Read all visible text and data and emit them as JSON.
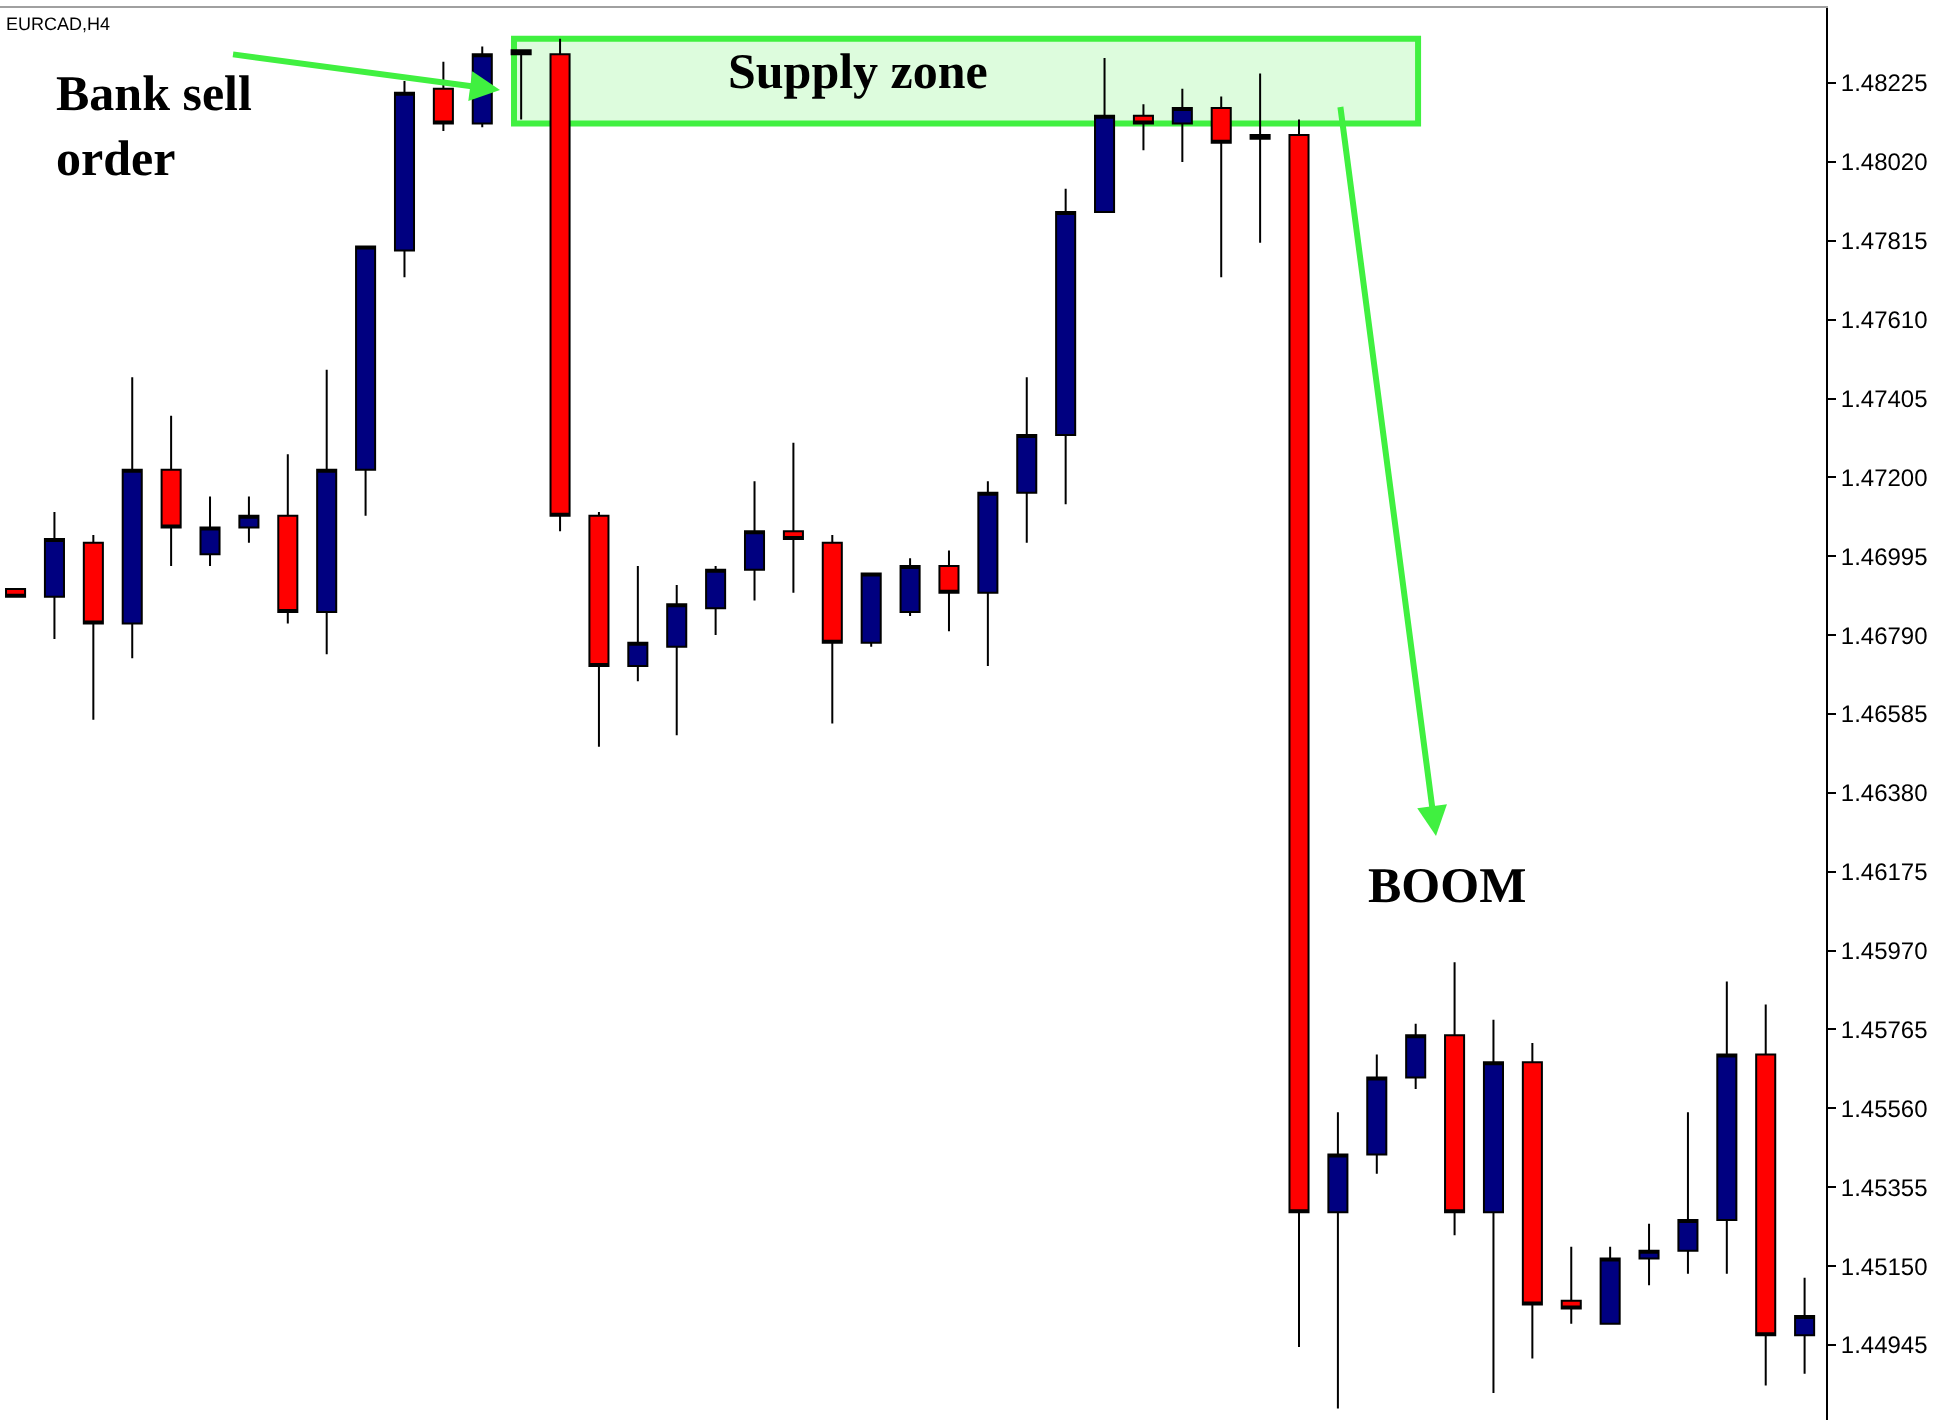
{
  "chart_data": {
    "type": "candlestick",
    "title": "EURCAD,H4",
    "categories": [
      null,
      null,
      null,
      null,
      null,
      null,
      null,
      null,
      null,
      null,
      null,
      null,
      null,
      null,
      null,
      null,
      null,
      null,
      null,
      null,
      null,
      null,
      null,
      null,
      null,
      null,
      null,
      null,
      null,
      null,
      null,
      null,
      null,
      null,
      null,
      null,
      null,
      null,
      null,
      null,
      null,
      null,
      null,
      null,
      null,
      null,
      null
    ],
    "ohlc": [
      [
        1.4691,
        1.4691,
        1.4689,
        1.4689
      ],
      [
        1.4689,
        1.4711,
        1.4678,
        1.4704
      ],
      [
        1.4703,
        1.4705,
        1.4657,
        1.4682
      ],
      [
        1.4682,
        1.4746,
        1.4673,
        1.4722
      ],
      [
        1.4722,
        1.4736,
        1.4697,
        1.4707
      ],
      [
        1.47,
        1.4715,
        1.4697,
        1.4707
      ],
      [
        1.4707,
        1.4715,
        1.4703,
        1.471
      ],
      [
        1.471,
        1.4726,
        1.4682,
        1.4685
      ],
      [
        1.4685,
        1.4748,
        1.4674,
        1.4722
      ],
      [
        1.4722,
        1.478,
        1.471,
        1.478
      ],
      [
        1.4779,
        1.4823,
        1.4772,
        1.482
      ],
      [
        1.4821,
        1.4828,
        1.481,
        1.4812
      ],
      [
        1.4812,
        1.4832,
        1.4811,
        1.483
      ],
      [
        1.483,
        1.4831,
        1.4813,
        1.4831
      ],
      [
        1.483,
        1.4834,
        1.4706,
        1.471
      ],
      [
        1.471,
        1.4711,
        1.465,
        1.4671
      ],
      [
        1.4671,
        1.4697,
        1.4667,
        1.4677
      ],
      [
        1.4676,
        1.4692,
        1.4653,
        1.4687
      ],
      [
        1.4686,
        1.4697,
        1.4679,
        1.4696
      ],
      [
        1.4696,
        1.4719,
        1.4688,
        1.4706
      ],
      [
        1.4706,
        1.4729,
        1.469,
        1.4704
      ],
      [
        1.4703,
        1.4705,
        1.4656,
        1.4677
      ],
      [
        1.4677,
        1.4695,
        1.4676,
        1.4695
      ],
      [
        1.4685,
        1.4699,
        1.4684,
        1.4697
      ],
      [
        1.4697,
        1.4701,
        1.468,
        1.469
      ],
      [
        1.469,
        1.4719,
        1.4671,
        1.4716
      ],
      [
        1.4716,
        1.4746,
        1.4703,
        1.4731
      ],
      [
        1.4731,
        1.4795,
        1.4713,
        1.4789
      ],
      [
        1.4789,
        1.4829,
        1.4789,
        1.4814
      ],
      [
        1.4814,
        1.4817,
        1.4805,
        1.4812
      ],
      [
        1.4812,
        1.4821,
        1.4802,
        1.4816
      ],
      [
        1.4816,
        1.4819,
        1.4772,
        1.4807
      ],
      [
        1.4808,
        1.4825,
        1.4781,
        1.4809
      ],
      [
        1.4809,
        1.4813,
        1.4494,
        1.4529
      ],
      [
        1.4529,
        1.4555,
        1.4478,
        1.4544
      ],
      [
        1.4544,
        1.457,
        1.4539,
        1.4564
      ],
      [
        1.4564,
        1.4578,
        1.4561,
        1.4575
      ],
      [
        1.4575,
        1.4594,
        1.4523,
        1.4529
      ],
      [
        1.4529,
        1.4579,
        1.4482,
        1.4568
      ],
      [
        1.4568,
        1.4573,
        1.4491,
        1.4505
      ],
      [
        1.4506,
        1.452,
        1.45,
        1.4504
      ],
      [
        1.45,
        1.452,
        1.45,
        1.4517
      ],
      [
        1.4517,
        1.4526,
        1.451,
        1.4519
      ],
      [
        1.4519,
        1.4555,
        1.4513,
        1.4527
      ],
      [
        1.4527,
        1.4589,
        1.4513,
        1.457
      ],
      [
        1.457,
        1.4583,
        1.4484,
        1.4497
      ],
      [
        1.4497,
        1.4512,
        1.4487,
        1.4502
      ]
    ],
    "colors": [
      "#ff0000",
      "#000080",
      "#ff0000",
      "#000080",
      "#ff0000",
      "#000080",
      "#000080",
      "#ff0000",
      "#000080",
      "#000080",
      "#000080",
      "#ff0000",
      "#000080",
      "#000000",
      "#ff0000",
      "#ff0000",
      "#000080",
      "#000080",
      "#000080",
      "#000080",
      "#ff0000",
      "#ff0000",
      "#000080",
      "#000080",
      "#ff0000",
      "#000080",
      "#000080",
      "#000080",
      "#000080",
      "#ff0000",
      "#000080",
      "#ff0000",
      "#000000",
      "#ff0000",
      "#000080",
      "#000080",
      "#000080",
      "#ff0000",
      "#000080",
      "#ff0000",
      "#ff0000",
      "#000080",
      "#000080",
      "#000080",
      "#000080",
      "#ff0000",
      "#000080"
    ],
    "ylim": [
      1.4475,
      1.4842
    ],
    "yticks": [
      1.44945,
      {
        "value": 1.4515,
        "label": "1.45150"
      },
      1.45355,
      {
        "value": 1.4556,
        "label": "1.45560"
      },
      1.45765,
      {
        "value": 1.4597,
        "label": "1.45970"
      },
      1.46175,
      {
        "value": 1.4638,
        "label": "1.46380"
      },
      1.46585,
      {
        "value": 1.4679,
        "label": "1.46790"
      },
      1.46995,
      {
        "value": 1.472,
        "label": "1.47200"
      },
      1.47405,
      {
        "value": 1.4761,
        "label": "1.47610"
      },
      1.47815,
      {
        "value": 1.4802,
        "label": "1.48020"
      },
      1.48225
    ],
    "tick_labels": "y",
    "bands": [
      {
        "axis": "y",
        "from": 1.4812,
        "to": 1.4834,
        "label": "Supply zone",
        "color": "#40f040"
      }
    ],
    "annotations": [
      "Bank sell\norder",
      "BOOM"
    ]
  }
}
